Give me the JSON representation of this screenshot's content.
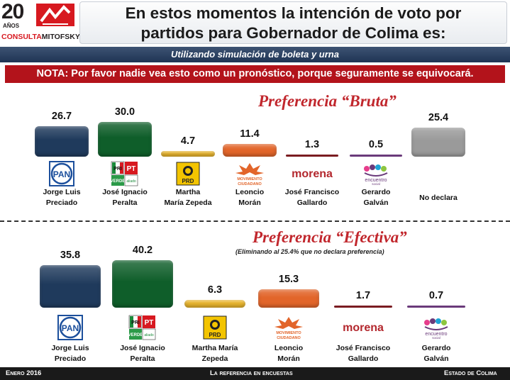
{
  "header": {
    "logo_number": "20",
    "logo_anos": "AÑOS",
    "logo_name_1": "CONSULTA",
    "logo_name_2": "MITOFSKY",
    "title_line1": "En estos momentos la intención de voto por",
    "title_line2": "partidos para Gobernador de Colima es:"
  },
  "subtitle": "Utilizando simulación de boleta y urna",
  "note": "NOTA: Por favor nadie vea esto como un pronóstico, porque seguramente se equivocará.",
  "colors": {
    "pan": "#1f3a5c",
    "pri": "#0f5e2a",
    "prd": "#e9b52e",
    "movimiento": "#e2652a",
    "morena": "#7a1c21",
    "encuentro": "#6a3a7a",
    "no_declara": "#9a9a9a",
    "heading": "#c1272d"
  },
  "chart_data": [
    {
      "type": "bar",
      "title": "Preferencia “Bruta”",
      "categories": [
        "Jorge Luis Preciado",
        "José Ignacio Peralta",
        "Martha María Zepeda",
        "Leoncio Morán",
        "José Francisco Gallardo",
        "Gerardo Galván",
        "No declara"
      ],
      "values": [
        26.7,
        30.0,
        4.7,
        11.4,
        1.3,
        0.5,
        25.4
      ],
      "value_labels": [
        "26.7",
        "30.0",
        "4.7",
        "11.4",
        "1.3",
        "0.5",
        "25.4"
      ],
      "party_logos": [
        "PAN",
        "PRI-PVEM-PT",
        "PRD",
        "MOVIMIENTO CIUDADANO",
        "morena",
        "encuentro social",
        ""
      ],
      "names": [
        [
          "Jorge Luis",
          "Preciado"
        ],
        [
          "José Ignacio",
          "Peralta"
        ],
        [
          "Martha",
          "María Zepeda"
        ],
        [
          "Leoncio",
          "Morán"
        ],
        [
          "José Francisco",
          "Gallardo"
        ],
        [
          "Gerardo",
          "Galván"
        ],
        [
          "No declara",
          ""
        ]
      ]
    },
    {
      "type": "bar",
      "title": "Preferencia “Efectiva”",
      "subtitle": "(Eliminando al 25.4% que no declara preferencia)",
      "categories": [
        "Jorge Luis Preciado",
        "José Ignacio Peralta",
        "Martha María Zepeda",
        "Leoncio Morán",
        "José Francisco Gallardo",
        "Gerardo Galván"
      ],
      "values": [
        35.8,
        40.2,
        6.3,
        15.3,
        1.7,
        0.7
      ],
      "value_labels": [
        "35.8",
        "40.2",
        "6.3",
        "15.3",
        "1.7",
        "0.7"
      ],
      "party_logos": [
        "PAN",
        "PRI-PVEM-PT",
        "PRD",
        "MOVIMIENTO CIUDADANO",
        "morena",
        "encuentro social"
      ],
      "names": [
        [
          "Jorge Luis",
          "Preciado"
        ],
        [
          "José Ignacio",
          "Peralta"
        ],
        [
          "Martha María",
          "Zepeda"
        ],
        [
          "Leoncio",
          "Morán"
        ],
        [
          "José Francisco",
          "Gallardo"
        ],
        [
          "Gerardo",
          "Galván"
        ]
      ]
    }
  ],
  "footer": {
    "left": "Enero 2016",
    "center": "La referencia en encuestas",
    "right": "Estado de Colima"
  }
}
